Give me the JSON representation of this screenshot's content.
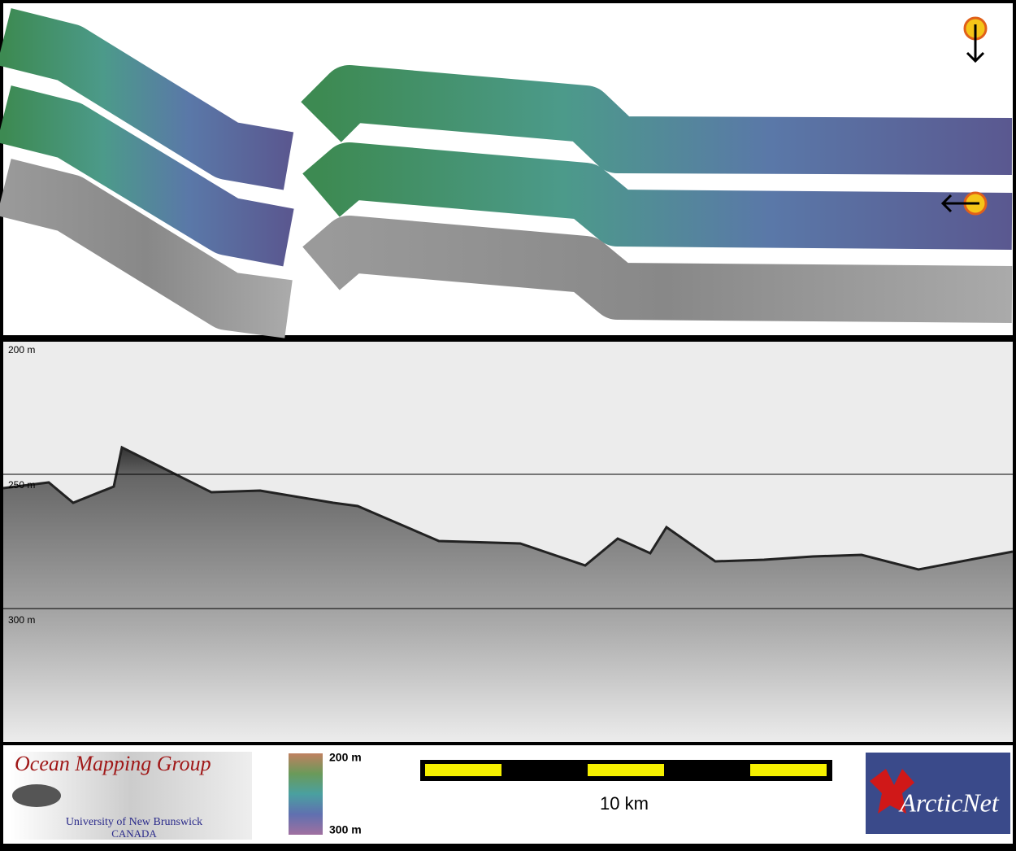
{
  "profile": {
    "depth_labels": [
      "200 m",
      "250 m",
      "300 m"
    ]
  },
  "legend": {
    "colorbar": {
      "top_label": "200 m",
      "bottom_label": "300 m"
    },
    "scale_bar": {
      "label": "10 km"
    }
  },
  "logos": {
    "left": {
      "title": "Ocean Mapping Group",
      "subtitle": "University of New Brunswick",
      "country": "CANADA"
    },
    "right": {
      "title": "ArcticNet"
    }
  }
}
